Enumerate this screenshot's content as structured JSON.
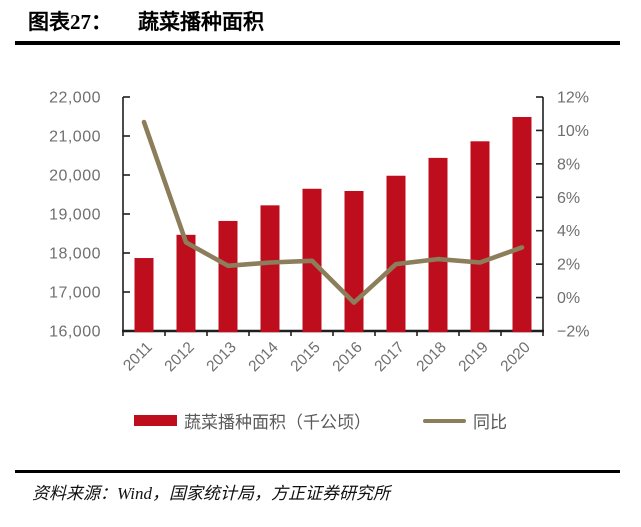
{
  "header": {
    "figure_label": "图表27：",
    "figure_title": "蔬菜播种面积"
  },
  "chart_data": {
    "type": "combo-bar-line",
    "title": "蔬菜播种面积",
    "categories": [
      "2011",
      "2012",
      "2013",
      "2014",
      "2015",
      "2016",
      "2017",
      "2018",
      "2019",
      "2020"
    ],
    "series": [
      {
        "name": "蔬菜播种面积（千公顷）",
        "type": "bar",
        "axis": "left",
        "color": "#be0e1e",
        "values": [
          17871,
          18466,
          18822,
          19222,
          19647,
          19590,
          19981,
          20439,
          20864,
          21487
        ]
      },
      {
        "name": "同比",
        "type": "line",
        "axis": "right",
        "color": "#8c7d5b",
        "values": [
          10.5,
          3.3,
          1.9,
          2.1,
          2.2,
          -0.3,
          2.0,
          2.3,
          2.1,
          3.0
        ]
      }
    ],
    "left_axis": {
      "min": 16000,
      "max": 22000,
      "step": 1000,
      "tick_labels": [
        "22,000",
        "21,000",
        "20,000",
        "19,000",
        "18,000",
        "17,000",
        "16,000"
      ]
    },
    "right_axis": {
      "min": -2,
      "max": 12,
      "step": 2,
      "tick_labels": [
        "12%",
        "10%",
        "8%",
        "6%",
        "4%",
        "2%",
        "0%",
        "−2%"
      ]
    },
    "axis_color": "#1f1f1f",
    "tick_label_color": "#6f6f6f",
    "grid": false,
    "legend_position": "bottom"
  },
  "legend": {
    "bar_label": "蔬菜播种面积（千公顷）",
    "line_label": "同比"
  },
  "footer": {
    "source": "资料来源：Wind，国家统计局，方正证券研究所"
  }
}
